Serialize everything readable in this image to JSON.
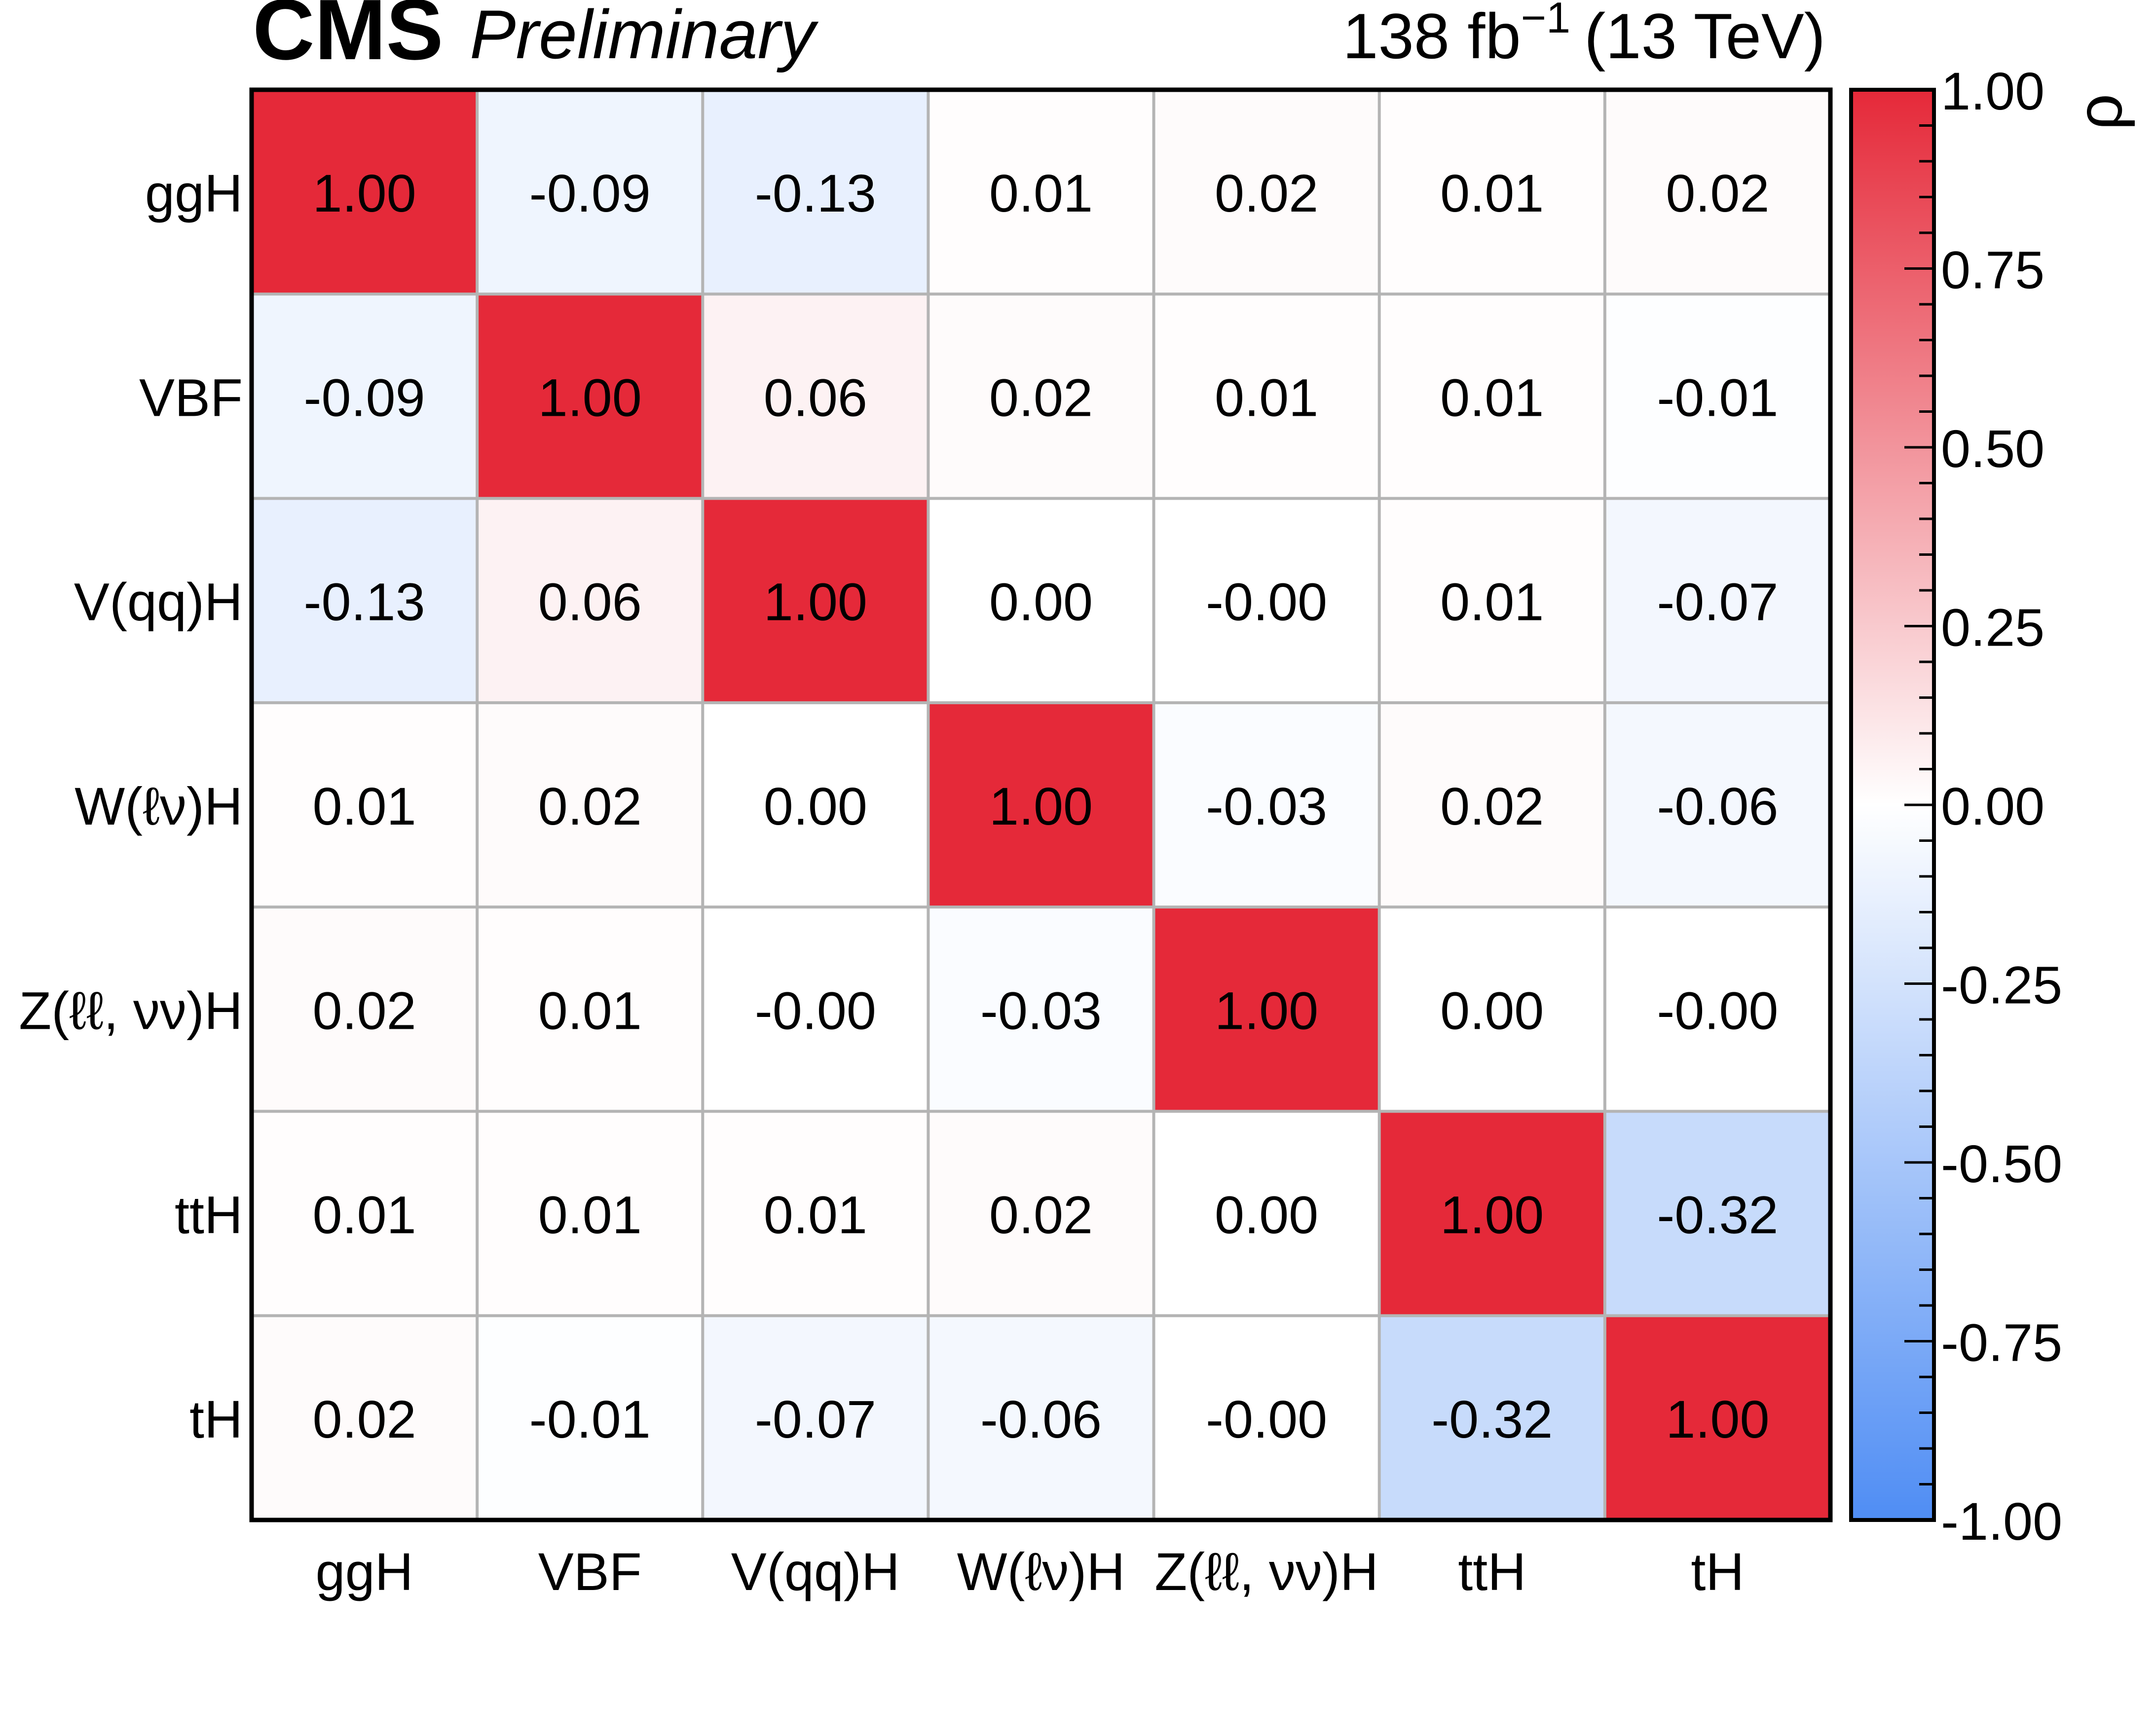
{
  "header": {
    "experiment": "CMS",
    "status": "Preliminary",
    "lumi_value": "138 fb",
    "lumi_exp": "−1",
    "energy": "(13 TeV)"
  },
  "chart_data": {
    "type": "heatmap",
    "x_categories": [
      "ggH",
      "VBF",
      "V(qq)H",
      "W(ℓν)H",
      "Z(ℓℓ, νν)H",
      "ttH",
      "tH"
    ],
    "y_categories": [
      "ggH",
      "VBF",
      "V(qq)H",
      "W(ℓν)H",
      "Z(ℓℓ, νν)H",
      "ttH",
      "tH"
    ],
    "values": [
      [
        1.0,
        -0.09,
        -0.13,
        0.01,
        0.02,
        0.01,
        0.02
      ],
      [
        -0.09,
        1.0,
        0.06,
        0.02,
        0.01,
        0.01,
        -0.01
      ],
      [
        -0.13,
        0.06,
        1.0,
        0.0,
        -0.0,
        0.01,
        -0.07
      ],
      [
        0.01,
        0.02,
        0.0,
        1.0,
        -0.03,
        0.02,
        -0.06
      ],
      [
        0.02,
        0.01,
        -0.0,
        -0.03,
        1.0,
        0.0,
        -0.0
      ],
      [
        0.01,
        0.01,
        0.01,
        0.02,
        0.0,
        1.0,
        -0.32
      ],
      [
        0.02,
        -0.01,
        -0.07,
        -0.06,
        -0.0,
        -0.32,
        1.0
      ]
    ],
    "cell_labels": [
      [
        "1.00",
        "-0.09",
        "-0.13",
        "0.01",
        "0.02",
        "0.01",
        "0.02"
      ],
      [
        "-0.09",
        "1.00",
        "0.06",
        "0.02",
        "0.01",
        "0.01",
        "-0.01"
      ],
      [
        "-0.13",
        "0.06",
        "1.00",
        "0.00",
        "-0.00",
        "0.01",
        "-0.07"
      ],
      [
        "0.01",
        "0.02",
        "0.00",
        "1.00",
        "-0.03",
        "0.02",
        "-0.06"
      ],
      [
        "0.02",
        "0.01",
        "-0.00",
        "-0.03",
        "1.00",
        "0.00",
        "-0.00"
      ],
      [
        "0.01",
        "0.01",
        "0.01",
        "0.02",
        "0.00",
        "1.00",
        "-0.32"
      ],
      [
        "0.02",
        "-0.01",
        "-0.07",
        "-0.06",
        "-0.00",
        "-0.32",
        "1.00"
      ]
    ],
    "colorbar": {
      "label": "ρ",
      "range": [
        -1.0,
        1.0
      ],
      "tick_labels": [
        "1.00",
        "0.75",
        "0.50",
        "0.25",
        "0.00",
        "-0.25",
        "-0.50",
        "-0.75",
        "-1.00"
      ],
      "colors": {
        "negative": "#4f8df4",
        "zero": "#ffffff",
        "positive": "#e52939"
      }
    },
    "grid": true
  }
}
